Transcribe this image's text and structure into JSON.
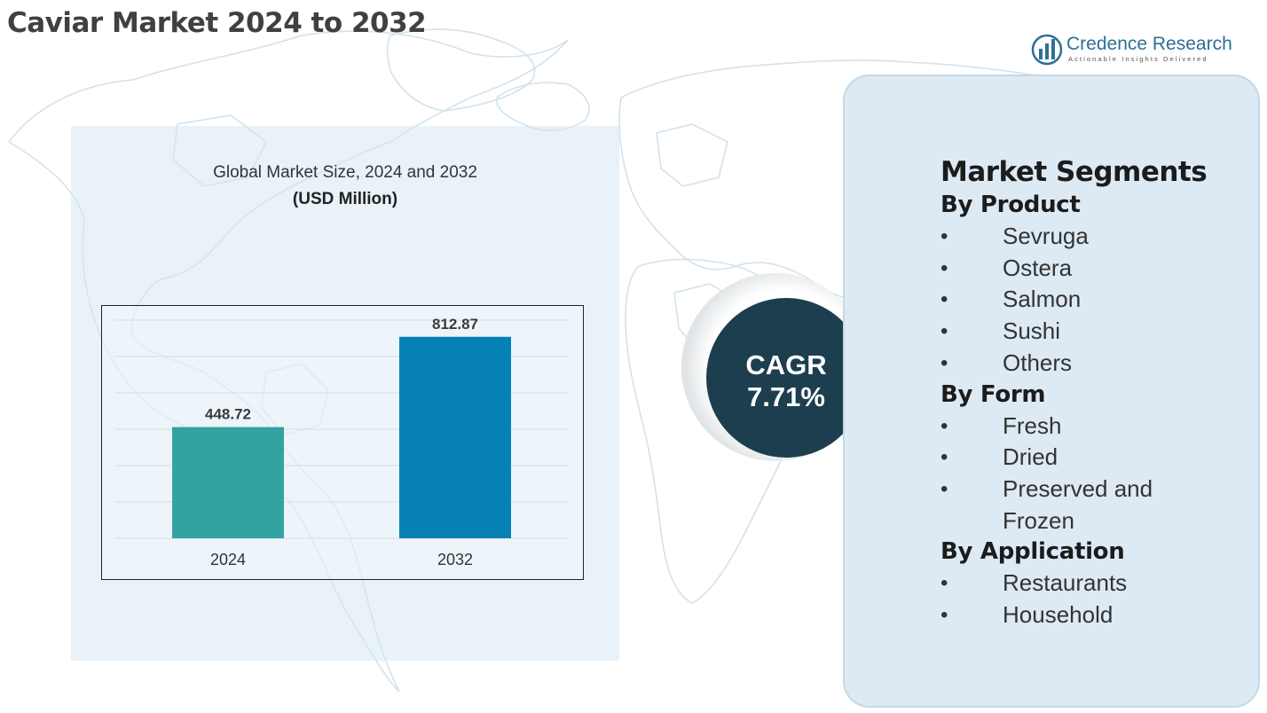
{
  "header": {
    "title": "Caviar Market 2024 to 2032"
  },
  "logo": {
    "name": "Credence Research",
    "tagline": "Actionable Insights Delivered"
  },
  "chart_data": {
    "type": "bar",
    "title": "Global Market Size, 2024 and 2032",
    "unit": "(USD Million)",
    "categories": [
      "2024",
      "2032"
    ],
    "values": [
      448.72,
      812.87
    ],
    "value_labels": [
      "448.72",
      "812.87"
    ],
    "colors": [
      "#33a3a1",
      "#0581b5"
    ],
    "ylim": [
      0,
      880
    ],
    "grid": true,
    "legend": "none",
    "xlabel": "",
    "ylabel": ""
  },
  "cagr": {
    "label": "CAGR",
    "value": "7.71%"
  },
  "segments": {
    "heading": "Market Segments",
    "groups": [
      {
        "title": "By Product",
        "items": [
          "Sevruga",
          "Ostera",
          "Salmon",
          "Sushi",
          "Others"
        ]
      },
      {
        "title": "By Form",
        "items": [
          "Fresh",
          "Dried",
          "Preserved and Frozen"
        ]
      },
      {
        "title": "By Application",
        "items": [
          "Restaurants",
          "Household"
        ]
      }
    ]
  }
}
